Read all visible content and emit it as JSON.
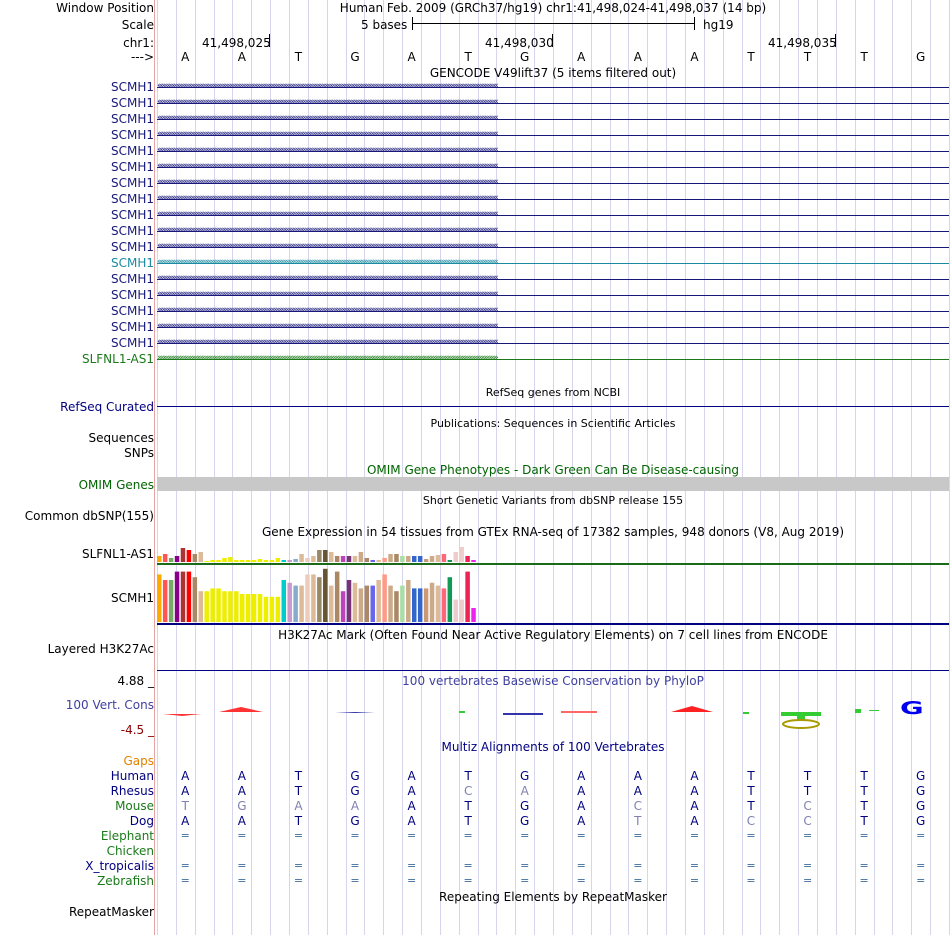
{
  "colors": {
    "left_border": "#eaa3a3",
    "grid": "#d5d5ee",
    "navy": "#000080",
    "gencode_blue": "#18187a",
    "scmh1_sel": "#1a8aa0",
    "slfnl1": "#1a7a1a",
    "omim_green": "#006400",
    "phylop_blue": "#3f3fa0",
    "gaps_orange": "#e08000",
    "red_hdr": "#8b0000"
  },
  "header": {
    "window_position_label": "Window Position",
    "window_position_text": "Human Feb. 2009 (GRCh37/hg19)   chr1:41,498,024-41,498,037 (14 bp)",
    "scale_label": "Scale",
    "scale_text": "5 bases",
    "scale_assembly": "hg19",
    "chrom_label": "chr1:",
    "coords": [
      "41,498,025",
      "41,498,030",
      "41,498,035"
    ],
    "strand_label": "--->",
    "bases": [
      "A",
      "A",
      "T",
      "G",
      "A",
      "T",
      "G",
      "A",
      "A",
      "A",
      "T",
      "T",
      "T",
      "G"
    ]
  },
  "gencode": {
    "title": "GENCODE V49lift37 (5 items filtered out)",
    "items": [
      "SCMH1",
      "SCMH1",
      "SCMH1",
      "SCMH1",
      "SCMH1",
      "SCMH1",
      "SCMH1",
      "SCMH1",
      "SCMH1",
      "SCMH1",
      "SCMH1",
      "SCMH1",
      "SCMH1",
      "SCMH1",
      "SCMH1",
      "SCMH1",
      "SCMH1"
    ],
    "selected_index": 11,
    "extra_item": "SLFNL1-AS1"
  },
  "refseq": {
    "title": "RefSeq genes from NCBI",
    "label": "RefSeq Curated"
  },
  "publications": {
    "title": "Publications: Sequences in Scientific Articles",
    "labels": [
      "Sequences",
      "SNPs"
    ]
  },
  "omim": {
    "title": "OMIM Gene Phenotypes - Dark Green Can Be Disease-causing",
    "label": "OMIM Genes"
  },
  "dbsnp": {
    "title": "Short Genetic Variants from dbSNP release 155",
    "label": "Common dbSNP(155)"
  },
  "gtex": {
    "title": "Gene Expression in 54 tissues from GTEx RNA-seq of 17382 samples, 948 donors (V8, Aug 2019)",
    "genes": [
      {
        "name": "SLFNL1-AS1",
        "values": [
          0.3,
          0.4,
          0.2,
          0.3,
          0.7,
          0.6,
          0.4,
          0.5,
          0.05,
          0.1,
          0.1,
          0.2,
          0.25,
          0.1,
          0.1,
          0.1,
          0.1,
          0.15,
          0.1,
          0.1,
          0.2,
          0.1,
          0.1,
          0.15,
          0.4,
          0.2,
          0.3,
          0.6,
          0.6,
          0.5,
          0.3,
          0.3,
          0.3,
          0.3,
          0.5,
          0.2,
          0.1,
          0.1,
          0.2,
          0.4,
          0.4,
          0.3,
          0.3,
          0.3,
          0.3,
          0.15,
          0.3,
          0.35,
          0.4,
          0.1,
          0.5,
          0.75,
          0.3,
          0.1
        ]
      },
      {
        "name": "SCMH1",
        "values": [
          0.85,
          0.75,
          0.75,
          0.9,
          0.9,
          0.9,
          0.8,
          0.55,
          0.55,
          0.6,
          0.6,
          0.55,
          0.55,
          0.55,
          0.5,
          0.5,
          0.5,
          0.5,
          0.45,
          0.45,
          0.45,
          0.75,
          0.7,
          0.65,
          0.65,
          0.85,
          0.85,
          0.8,
          0.95,
          0.65,
          0.9,
          0.55,
          0.75,
          0.7,
          0.6,
          0.65,
          0.65,
          0.75,
          0.85,
          0.65,
          0.55,
          0.65,
          0.75,
          0.6,
          0.6,
          0.6,
          0.7,
          0.65,
          0.6,
          0.8,
          0.4,
          0.4,
          0.9,
          0.25
        ]
      }
    ],
    "colors": [
      "#ffaa00",
      "#ff5555",
      "#77aa66",
      "#880088",
      "#aa3333",
      "#ff0000",
      "#aa8866",
      "#ddbb99",
      "#eeee00",
      "#eeee00",
      "#eeee00",
      "#eeee00",
      "#eeee00",
      "#eeee00",
      "#eeee00",
      "#eeee00",
      "#eeee00",
      "#eeee00",
      "#eeee00",
      "#eeee00",
      "#eeee00",
      "#00cccc",
      "#cc99cc",
      "#88aacc",
      "#ddbb99",
      "#eeccbb",
      "#ddbb99",
      "#998866",
      "#665533",
      "#ddbb99",
      "#aa8866",
      "#bb44bb",
      "#773377",
      "#ddbb99",
      "#ccaa88",
      "#aa8866",
      "#6666ee",
      "#ddbb99",
      "#ff9988",
      "#ccaa88",
      "#aa8866",
      "#aaddaa",
      "#ccaa88",
      "#3366cc",
      "#3366cc",
      "#cc9977",
      "#ccaa88",
      "#ddbb99",
      "#ff6677",
      "#119955",
      "#eecccc",
      "#eecccc",
      "#ee2255",
      "#ee22ee"
    ]
  },
  "h3k27ac": {
    "title": "H3K27Ac Mark (Often Found Near Active Regulatory Elements) on 7 cell lines from ENCODE",
    "label": "Layered H3K27Ac"
  },
  "phylop": {
    "title": "100 vertebrates Basewise Conservation by PhyloP",
    "label": "100 Vert. Cons",
    "ymax": "4.88 _",
    "ymin": "-4.5 _"
  },
  "multiz": {
    "title": "Multiz Alignments of 100 Vertebrates",
    "species": [
      {
        "name": "Gaps",
        "color": "#e08000",
        "bases": null
      },
      {
        "name": "Human",
        "color": "#000080",
        "bases": [
          "A",
          "A",
          "T",
          "G",
          "A",
          "T",
          "G",
          "A",
          "A",
          "A",
          "T",
          "T",
          "T",
          "G"
        ]
      },
      {
        "name": "Rhesus",
        "color": "#000080",
        "bases": [
          "A",
          "A",
          "T",
          "G",
          "A",
          "C",
          "A",
          "A",
          "A",
          "A",
          "T",
          "T",
          "T",
          "G"
        ]
      },
      {
        "name": "Mouse",
        "color": "#1a7a1a",
        "bases": [
          "T",
          "G",
          "A",
          "A",
          "A",
          "T",
          "G",
          "A",
          "C",
          "A",
          "T",
          "C",
          "T",
          "G"
        ]
      },
      {
        "name": "Dog",
        "color": "#000080",
        "bases": [
          "A",
          "A",
          "T",
          "G",
          "A",
          "T",
          "G",
          "A",
          "T",
          "A",
          "C",
          "C",
          "T",
          "G"
        ]
      },
      {
        "name": "Elephant",
        "color": "#1a7a1a",
        "bases": [
          "=",
          "=",
          "=",
          "=",
          "=",
          "=",
          "=",
          "=",
          "=",
          "=",
          "=",
          "=",
          "=",
          "="
        ]
      },
      {
        "name": "Chicken",
        "color": "#1a7a1a",
        "bases": null
      },
      {
        "name": "X_tropicalis",
        "color": "#000080",
        "bases": [
          "=",
          "=",
          "=",
          "=",
          "=",
          "=",
          "=",
          "=",
          "=",
          "=",
          "=",
          "=",
          "=",
          "="
        ]
      },
      {
        "name": "Zebrafish",
        "color": "#1a7a1a",
        "bases": [
          "=",
          "=",
          "=",
          "=",
          "=",
          "=",
          "=",
          "=",
          "=",
          "=",
          "=",
          "=",
          "=",
          "="
        ]
      }
    ]
  },
  "repeatmasker": {
    "title": "Repeating Elements by RepeatMasker",
    "label": "RepeatMasker"
  }
}
